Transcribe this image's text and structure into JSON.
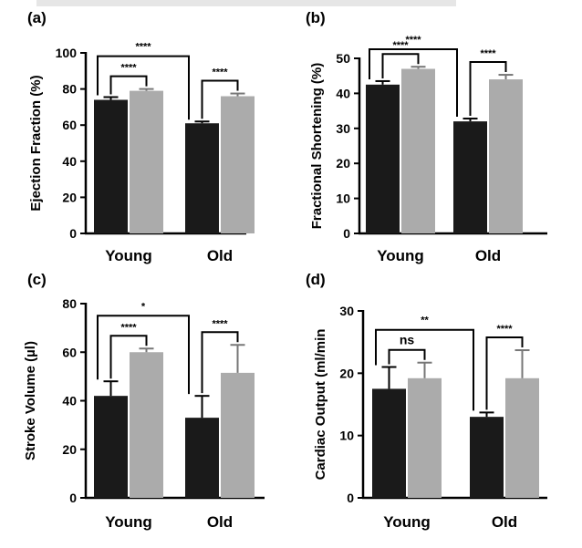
{
  "colors": {
    "young_old_control": "#1a1a1a",
    "treated": "#ababab",
    "axis": "#000000"
  },
  "chart_data": [
    {
      "type": "bar",
      "panel": "(a)",
      "ylabel": "Ejection Fraction (%)",
      "ylim": [
        0,
        100
      ],
      "yticks": [
        "0",
        "20",
        "40",
        "60",
        "80",
        "100"
      ],
      "categories": [
        "Young",
        "Old"
      ],
      "series": [
        {
          "values": [
            74,
            61
          ],
          "errors": [
            1.5,
            1
          ]
        },
        {
          "values": [
            79,
            76
          ],
          "errors": [
            1,
            1.5
          ]
        }
      ],
      "annotations": [
        {
          "label": "****",
          "type": "between-categories"
        },
        {
          "label": "****",
          "type": "within-Young"
        },
        {
          "label": "****",
          "type": "within-Old"
        }
      ]
    },
    {
      "type": "bar",
      "panel": "(b)",
      "ylabel": "Fractional Shortening (%)",
      "ylim": [
        0,
        50
      ],
      "yticks": [
        "0",
        "10",
        "20",
        "30",
        "40",
        "50"
      ],
      "categories": [
        "Young",
        "Old"
      ],
      "series": [
        {
          "values": [
            42.5,
            32
          ],
          "errors": [
            1,
            0.8
          ]
        },
        {
          "values": [
            47,
            44
          ],
          "errors": [
            0.6,
            1.3
          ]
        }
      ],
      "annotations": [
        {
          "label": "****",
          "type": "between-categories"
        },
        {
          "label": "****",
          "type": "within-Young"
        },
        {
          "label": "****",
          "type": "within-Old"
        }
      ]
    },
    {
      "type": "bar",
      "panel": "(c)",
      "ylabel": "Stroke Volume (µl)",
      "ylim": [
        0,
        80
      ],
      "yticks": [
        "0",
        "20",
        "40",
        "60",
        "80"
      ],
      "categories": [
        "Young",
        "Old"
      ],
      "series": [
        {
          "values": [
            42,
            33
          ],
          "errors": [
            6,
            9
          ]
        },
        {
          "values": [
            60,
            51.5
          ],
          "errors": [
            1.5,
            11.5
          ]
        }
      ],
      "annotations": [
        {
          "label": "*",
          "type": "between-categories"
        },
        {
          "label": "****",
          "type": "within-Young"
        },
        {
          "label": "****",
          "type": "within-Old"
        }
      ]
    },
    {
      "type": "bar",
      "panel": "(d)",
      "ylabel": "Cardiac Output (ml/min",
      "ylim": [
        0,
        30
      ],
      "yticks": [
        "0",
        "10",
        "20",
        "30"
      ],
      "categories": [
        "Young",
        "Old"
      ],
      "series": [
        {
          "values": [
            17.5,
            13
          ],
          "errors": [
            3.5,
            0.7
          ]
        },
        {
          "values": [
            19.2,
            19.2
          ],
          "errors": [
            2.5,
            4.5
          ]
        }
      ],
      "annotations": [
        {
          "label": "**",
          "type": "between-categories"
        },
        {
          "label": "ns",
          "type": "within-Young"
        },
        {
          "label": "****",
          "type": "within-Old"
        }
      ]
    }
  ]
}
